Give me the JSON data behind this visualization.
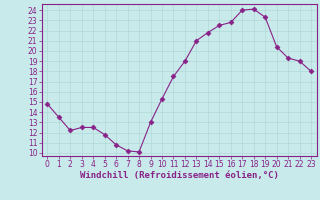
{
  "x": [
    0,
    1,
    2,
    3,
    4,
    5,
    6,
    7,
    8,
    9,
    10,
    11,
    12,
    13,
    14,
    15,
    16,
    17,
    18,
    19,
    20,
    21,
    22,
    23
  ],
  "y": [
    14.8,
    13.5,
    12.2,
    12.5,
    12.5,
    11.8,
    10.8,
    10.2,
    10.1,
    13.0,
    15.3,
    17.5,
    19.0,
    21.0,
    21.8,
    22.5,
    22.8,
    24.0,
    24.1,
    23.3,
    20.4,
    19.3,
    19.0,
    18.0
  ],
  "line_color": "#882288",
  "marker": "D",
  "markersize": 2.5,
  "linewidth": 0.8,
  "bg_color": "#c8eaea",
  "grid_color": "#b0d8d8",
  "xlabel": "Windchill (Refroidissement éolien,°C)",
  "xlabel_fontsize": 6.5,
  "yticks": [
    10,
    11,
    12,
    13,
    14,
    15,
    16,
    17,
    18,
    19,
    20,
    21,
    22,
    23,
    24
  ],
  "ylim": [
    9.7,
    24.6
  ],
  "xlim": [
    -0.5,
    23.5
  ],
  "tick_fontsize": 5.5,
  "tick_color": "#882288",
  "spine_color": "#882288"
}
